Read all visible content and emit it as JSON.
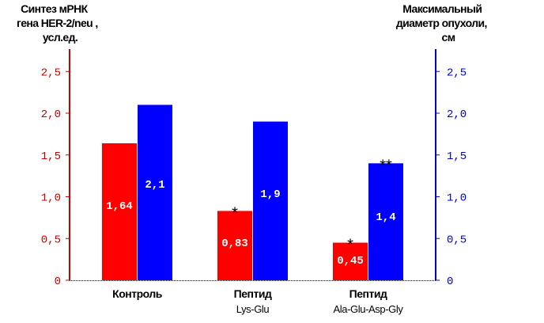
{
  "chart_data": {
    "type": "bar",
    "left_axis_title": [
      "Синтез мРНК",
      "гена HER-2/neu ,",
      "усл.ед."
    ],
    "right_axis_title": [
      "Максимальный",
      "диаметр опухоли,",
      "см"
    ],
    "y_ticks": [
      "0",
      "0,5",
      "1,0",
      "1,5",
      "2,0",
      "2,5"
    ],
    "y_ticks_right": [
      "0",
      "0,5",
      "1,0",
      "1,5",
      "2,0",
      "2,5"
    ],
    "ylim": [
      0,
      2.75
    ],
    "categories": [
      {
        "main": "Контроль",
        "sub": ""
      },
      {
        "main": "Пептид",
        "sub": "Lys-Glu"
      },
      {
        "main": "Пептид",
        "sub": "Ala-Glu-Asp-Gly"
      }
    ],
    "series": [
      {
        "axis": "left",
        "color": "#ff0000",
        "values": [
          1.64,
          0.83,
          0.45
        ],
        "labels": [
          "1,64",
          "0,83",
          "0,45"
        ],
        "marks": [
          "",
          "*",
          "*"
        ]
      },
      {
        "axis": "right",
        "color": "#0000ff",
        "values": [
          2.1,
          1.9,
          1.4
        ],
        "labels": [
          "2,1",
          "1,9",
          "1,4"
        ],
        "marks": [
          "",
          "",
          "**"
        ]
      }
    ],
    "left_axis_color": "#cc0000",
    "right_axis_color": "#0000cc",
    "grid": false
  }
}
